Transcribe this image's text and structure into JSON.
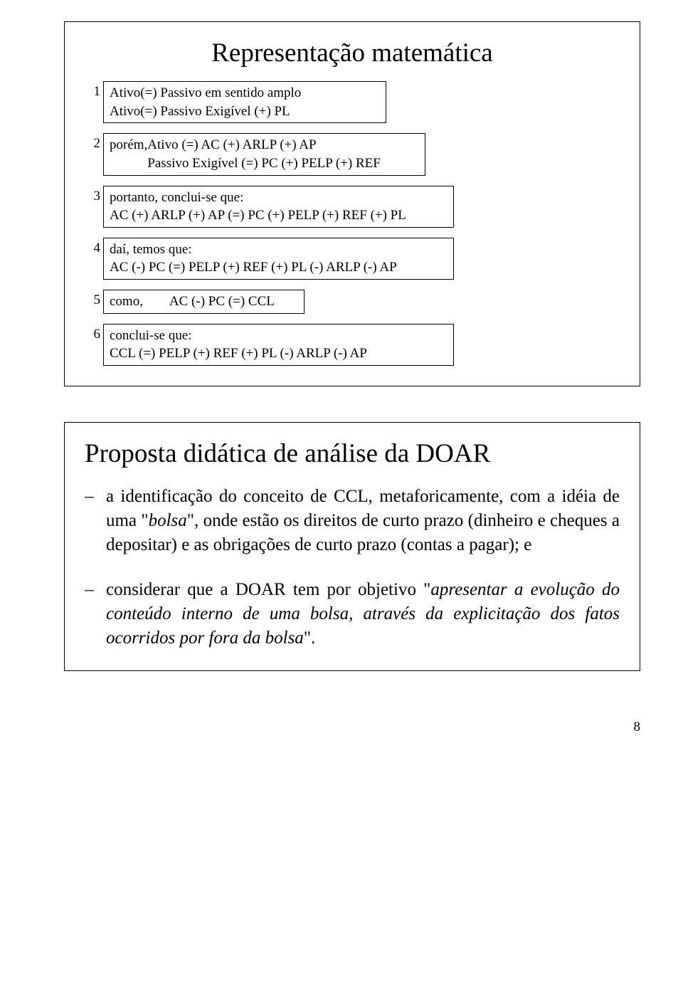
{
  "panel1": {
    "title": "Representação matemática",
    "rows": [
      {
        "n": "1",
        "lines": [
          [
            "Ativo",
            "(=) Passivo em sentido amplo"
          ],
          [
            "Ativo",
            "(=) Passivo Exigível (+) PL"
          ]
        ]
      },
      {
        "n": "2",
        "lines": [
          [
            "porém,",
            "Ativo (=) AC (+) ARLP (+) AP"
          ],
          [
            "",
            "Passivo Exigível (=) PC (+) PELP (+) REF"
          ]
        ]
      },
      {
        "n": "3",
        "lines": [
          [
            "portanto, conclui-se que:"
          ],
          [
            "AC (+) ARLP (+) AP (=) PC (+) PELP (+) REF (+) PL"
          ]
        ]
      },
      {
        "n": "4",
        "lines": [
          [
            "daí, temos que:"
          ],
          [
            "AC (-) PC (=) PELP (+) REF (+) PL (-) ARLP (-) AP"
          ]
        ]
      },
      {
        "n": "5",
        "lines": [
          [
            "como,        AC (-) PC (=) CCL"
          ]
        ]
      },
      {
        "n": "6",
        "lines": [
          [
            "conclui-se que:"
          ],
          [
            "CCL (=) PELP (+) REF (+) PL (-) ARLP (-) AP"
          ]
        ]
      }
    ]
  },
  "panel2": {
    "title": "Proposta didática de análise da DOAR",
    "item1": {
      "pre": "a identificação do conceito de CCL, metaforicamente, com a idéia de uma \"",
      "italic1": "bolsa",
      "post": "\", onde estão os direitos de curto prazo (dinheiro e cheques a depositar) e as obrigações de curto prazo (contas a pagar); e"
    },
    "item2": {
      "pre": "considerar que a DOAR tem por objetivo \"",
      "italic": "apresentar a evolução do conteúdo interno  de uma bolsa, através da explicitação dos fatos ocorridos por fora da bolsa",
      "post": "\"."
    }
  },
  "page_number": "8"
}
